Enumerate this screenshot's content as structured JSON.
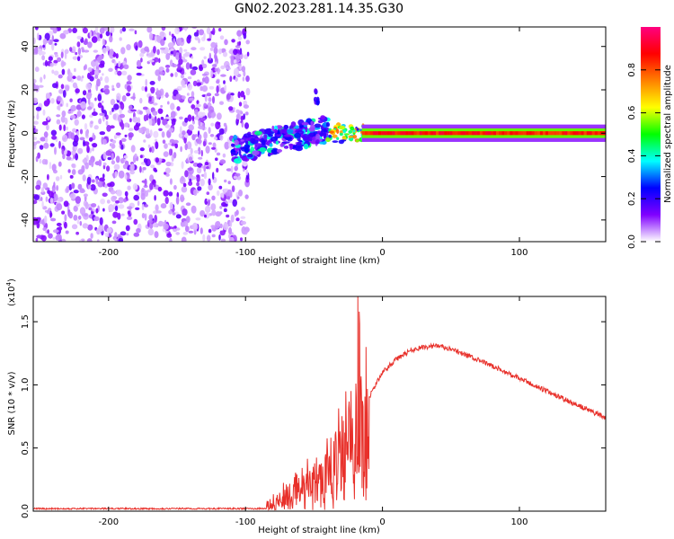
{
  "title": "GN02.2023.281.14.35.G30",
  "chart_data": [
    {
      "type": "heatmap",
      "title": "GN02.2023.281.14.35.G30",
      "xlabel": "Height of straight line (km)",
      "ylabel": "Frequency (Hz)",
      "xlim": [
        -255,
        163
      ],
      "ylim": [
        -50,
        49
      ],
      "x_ticks": [
        -200,
        -100,
        0,
        100
      ],
      "x_tick_labels": [
        "-200",
        "-100",
        "0",
        "100"
      ],
      "y_ticks": [
        -40,
        -20,
        0,
        20,
        40
      ],
      "y_tick_labels": [
        "-40",
        "-20",
        "0",
        "20",
        "40"
      ],
      "colorbar": {
        "label": "Normalized spectral amplitude",
        "range": [
          0,
          1
        ],
        "ticks": [
          0.0,
          0.2,
          0.4,
          0.6,
          0.8
        ],
        "tick_labels": [
          "0.0",
          "0.2",
          "0.4",
          "0.6",
          "0.8"
        ],
        "colors": [
          "#ffffff",
          "#8000ff",
          "#0000ff",
          "#00ffff",
          "#00ff00",
          "#ffff00",
          "#ff8000",
          "#ff0000",
          "#ff0080"
        ]
      },
      "regions": [
        {
          "name": "noise",
          "x_range": [
            -255,
            -98
          ],
          "f_range": [
            -50,
            49
          ],
          "amplitude": 0.1
        },
        {
          "name": "onset",
          "x_range": [
            -110,
            -40
          ],
          "f_range": [
            -12,
            8
          ],
          "amplitude": 0.35
        },
        {
          "name": "burst",
          "x_range": [
            -50,
            -47
          ],
          "f_range": [
            12,
            20
          ],
          "amplitude": 0.25
        },
        {
          "name": "trail",
          "x_range": [
            -15,
            163
          ],
          "f_range": [
            -2,
            2
          ],
          "amplitude": 0.9
        }
      ]
    },
    {
      "type": "line",
      "xlabel": "Height of straight line (km)",
      "ylabel": "SNR (10 * v/v)",
      "y_scale_label": "(x10",
      "y_scale_exp": "4",
      "y_scale_close": ")",
      "xlim": [
        -255,
        163
      ],
      "ylim": [
        0,
        1.7
      ],
      "x_ticks": [
        -200,
        -100,
        0,
        100
      ],
      "x_tick_labels": [
        "-200",
        "-100",
        "0",
        "100"
      ],
      "y_ticks": [
        0.0,
        0.5,
        1.0,
        1.5
      ],
      "y_tick_labels": [
        "0.0",
        "0.5",
        "1.0",
        "1.5"
      ],
      "series": [
        {
          "name": "SNR",
          "color": "#e8302a",
          "x": [
            -255,
            -150,
            -85,
            -78,
            -70,
            -60,
            -50,
            -42,
            -35,
            -30,
            -25,
            -20,
            -18,
            -16,
            -14,
            -10,
            -5,
            0,
            10,
            20,
            30,
            40,
            50,
            60,
            80,
            100,
            120,
            140,
            163
          ],
          "y": [
            0.02,
            0.02,
            0.02,
            0.04,
            0.15,
            0.25,
            0.35,
            0.4,
            0.5,
            0.7,
            0.75,
            0.9,
            1.4,
            1.0,
            0.7,
            0.9,
            1.0,
            1.1,
            1.2,
            1.27,
            1.3,
            1.31,
            1.28,
            1.24,
            1.15,
            1.05,
            0.95,
            0.85,
            0.74
          ]
        }
      ],
      "noise_regions": [
        {
          "x_range": [
            -85,
            -10
          ],
          "noise_amplitude": 0.35
        },
        {
          "x_range": [
            -10,
            163
          ],
          "noise_amplitude": 0.02
        }
      ],
      "peaks": [
        {
          "x": -18,
          "y": 1.7
        },
        {
          "x": -17,
          "y": 1.58
        },
        {
          "x": -12,
          "y": 1.3
        }
      ]
    }
  ]
}
